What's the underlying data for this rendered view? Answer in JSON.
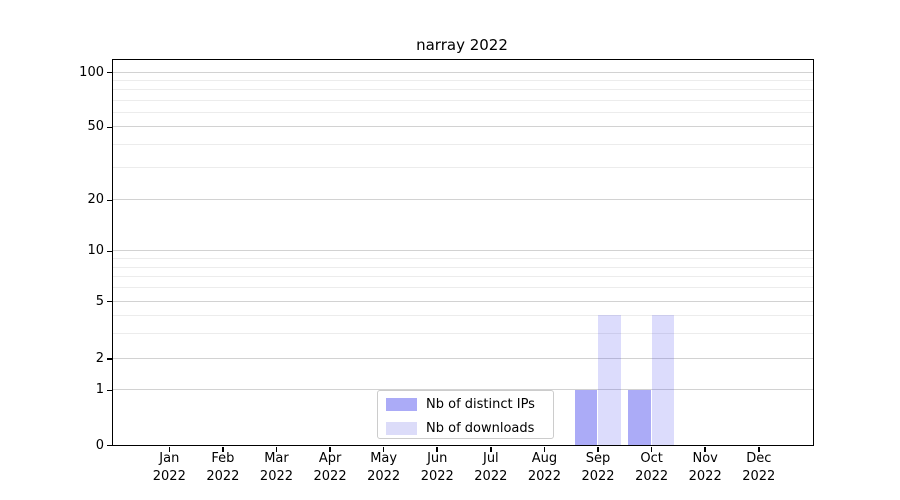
{
  "chart_data": {
    "type": "bar",
    "title": "narray 2022",
    "x_axis": {
      "categories": [
        "Jan",
        "Feb",
        "Mar",
        "Apr",
        "May",
        "Jun",
        "Jul",
        "Aug",
        "Sep",
        "Oct",
        "Nov",
        "Dec"
      ],
      "year_label": "2022"
    },
    "y_axis": {
      "scale": "log-like",
      "range": [
        0,
        100
      ],
      "ticks": [
        {
          "value": 0,
          "label": "0",
          "pos": 1.0
        },
        {
          "value": 1,
          "label": "1",
          "pos": 0.8571
        },
        {
          "value": 2,
          "label": "2",
          "pos": 0.7753
        },
        {
          "value": 5,
          "label": "5",
          "pos": 0.626
        },
        {
          "value": 10,
          "label": "10",
          "pos": 0.4961
        },
        {
          "value": 20,
          "label": "20",
          "pos": 0.3636
        },
        {
          "value": 50,
          "label": "50",
          "pos": 0.174
        },
        {
          "value": 100,
          "label": "100",
          "pos": 0.0312
        }
      ],
      "minor_ticks": [
        3,
        4,
        6,
        7,
        8,
        9,
        30,
        40,
        60,
        70,
        80,
        90
      ]
    },
    "series": [
      {
        "name": "Nb of distinct IPs",
        "color": "#ababf7",
        "fill": "rgba(68,68,238,0.45)",
        "values": [
          0,
          0,
          0,
          0,
          0,
          0,
          0,
          0,
          1,
          1,
          0,
          0
        ]
      },
      {
        "name": "Nb of downloads",
        "color": "#dcdcf9",
        "fill": "rgba(68,68,238,0.19)",
        "values": [
          0,
          0,
          0,
          0,
          0,
          0,
          0,
          0,
          4,
          4,
          0,
          0
        ]
      }
    ],
    "legend": {
      "position": "lower center",
      "entries": [
        "Nb of distinct IPs",
        "Nb of downloads"
      ]
    },
    "grid": {
      "major_color": "#d2d2d2",
      "minor_color": "#ececec"
    },
    "colors": {
      "spine": "#000000",
      "background": "#ffffff",
      "text": "#000000"
    }
  }
}
